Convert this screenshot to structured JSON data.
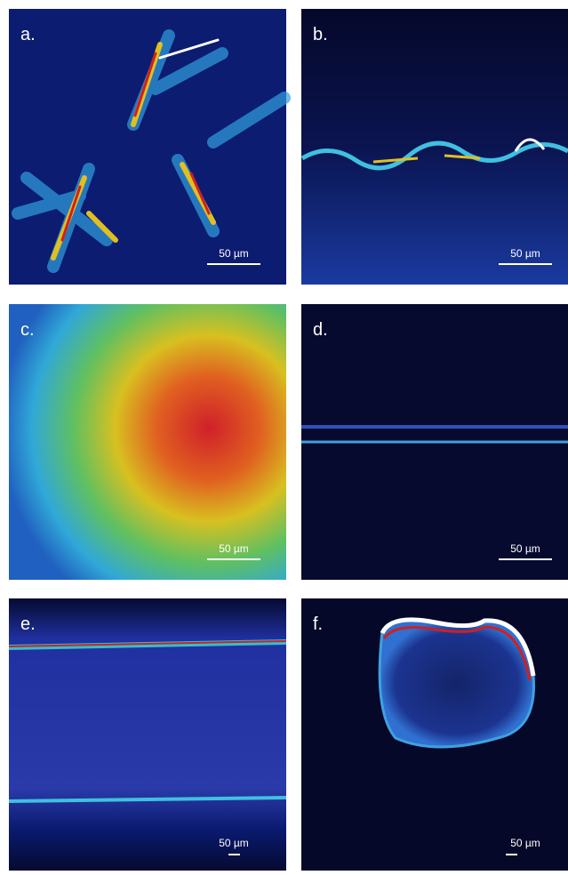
{
  "panels": [
    {
      "label": "a.",
      "scale_label": "50 µm"
    },
    {
      "label": "b.",
      "scale_label": "50 µm"
    },
    {
      "label": "c.",
      "scale_label": "50 µm"
    },
    {
      "label": "d.",
      "scale_label": "50 µm"
    },
    {
      "label": "e.",
      "scale_label": "50 µm"
    },
    {
      "label": "f.",
      "scale_label": "50 µm"
    }
  ]
}
